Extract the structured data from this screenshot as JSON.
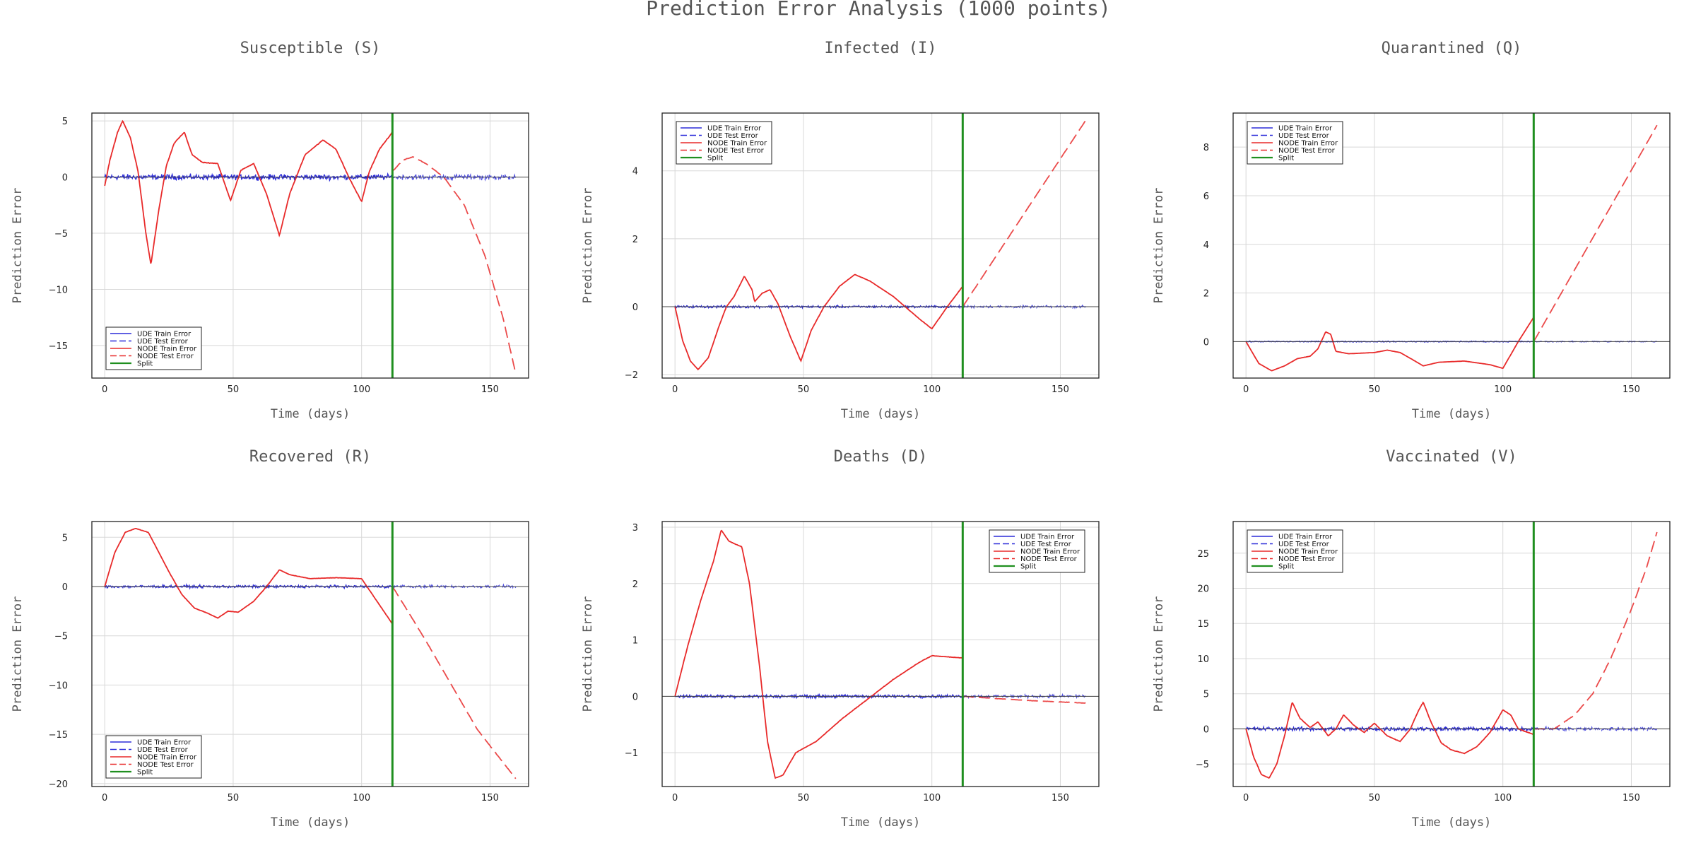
{
  "figure": {
    "title": "Prediction Error Analysis (1000 points)"
  },
  "colors": {
    "ude": "#2b2bd9",
    "node": "#e82a2a",
    "split": "#1f8f1f",
    "grid": "#d8d8d8",
    "frame": "#222222"
  },
  "legend_labels": [
    "UDE Train Error",
    "UDE Test Error",
    "NODE Train Error",
    "NODE Test Error",
    "Split"
  ],
  "chart_data": [
    {
      "type": "line",
      "title": "Susceptible (S)",
      "xlabel": "Time (days)",
      "ylabel": "Prediction Error",
      "xlim": [
        -5,
        165
      ],
      "ylim": [
        -17.9,
        5.7
      ],
      "xticks": [
        0,
        50,
        100,
        150
      ],
      "yticks": [
        5,
        0,
        -5,
        -10,
        -15
      ],
      "split_x": 112,
      "legend_position": "bottom-left",
      "ude_noise": 0.35,
      "node_train": [
        [
          0,
          -0.8
        ],
        [
          2,
          1.5
        ],
        [
          5,
          4.0
        ],
        [
          7,
          5.0
        ],
        [
          10,
          3.5
        ],
        [
          13,
          0.5
        ],
        [
          16,
          -5.0
        ],
        [
          18,
          -7.8
        ],
        [
          21,
          -3.0
        ],
        [
          24,
          1.0
        ],
        [
          27,
          3.0
        ],
        [
          31,
          4.0
        ],
        [
          34,
          2.0
        ],
        [
          38,
          1.3
        ],
        [
          44,
          1.2
        ],
        [
          49,
          -2.1
        ],
        [
          53,
          0.6
        ],
        [
          58,
          1.2
        ],
        [
          63,
          -1.5
        ],
        [
          68,
          -5.2
        ],
        [
          72,
          -1.5
        ],
        [
          78,
          2.0
        ],
        [
          85,
          3.3
        ],
        [
          90,
          2.5
        ],
        [
          95,
          0.0
        ],
        [
          100,
          -2.2
        ],
        [
          103,
          0.5
        ],
        [
          107,
          2.5
        ],
        [
          112,
          4.0
        ]
      ],
      "node_test": [
        [
          112,
          0.5
        ],
        [
          116,
          1.5
        ],
        [
          120,
          1.8
        ],
        [
          125,
          1.2
        ],
        [
          132,
          0.0
        ],
        [
          140,
          -2.5
        ],
        [
          148,
          -7.0
        ],
        [
          155,
          -12.5
        ],
        [
          160,
          -17.5
        ]
      ],
      "series": [
        {
          "name": "UDE Train Error"
        },
        {
          "name": "UDE Test Error"
        },
        {
          "name": "NODE Train Error"
        },
        {
          "name": "NODE Test Error"
        },
        {
          "name": "Split"
        }
      ]
    },
    {
      "type": "line",
      "title": "Infected (I)",
      "xlabel": "Time (days)",
      "ylabel": "Prediction Error",
      "xlim": [
        -5,
        165
      ],
      "ylim": [
        -2.1,
        5.7
      ],
      "xticks": [
        0,
        50,
        100,
        150
      ],
      "yticks": [
        4,
        2,
        0,
        -2
      ],
      "split_x": 112,
      "legend_position": "top-left",
      "ude_noise": 0.05,
      "node_train": [
        [
          0,
          0.0
        ],
        [
          3,
          -1.0
        ],
        [
          6,
          -1.6
        ],
        [
          9,
          -1.85
        ],
        [
          13,
          -1.5
        ],
        [
          17,
          -0.6
        ],
        [
          20,
          0.0
        ],
        [
          23,
          0.3
        ],
        [
          27,
          0.9
        ],
        [
          30,
          0.5
        ],
        [
          31,
          0.15
        ],
        [
          34,
          0.4
        ],
        [
          37,
          0.5
        ],
        [
          40,
          0.1
        ],
        [
          45,
          -0.9
        ],
        [
          49,
          -1.6
        ],
        [
          53,
          -0.7
        ],
        [
          58,
          0.0
        ],
        [
          64,
          0.6
        ],
        [
          70,
          0.95
        ],
        [
          76,
          0.75
        ],
        [
          85,
          0.3
        ],
        [
          95,
          -0.35
        ],
        [
          100,
          -0.65
        ],
        [
          106,
          0.0
        ],
        [
          112,
          0.6
        ]
      ],
      "node_test": [
        [
          112,
          0.0
        ],
        [
          160,
          5.5
        ]
      ],
      "series": [
        {
          "name": "UDE Train Error"
        },
        {
          "name": "UDE Test Error"
        },
        {
          "name": "NODE Train Error"
        },
        {
          "name": "NODE Test Error"
        },
        {
          "name": "Split"
        }
      ]
    },
    {
      "type": "line",
      "title": "Quarantined (Q)",
      "xlabel": "Time (days)",
      "ylabel": "Prediction Error",
      "xlim": [
        -5,
        165
      ],
      "ylim": [
        -1.5,
        9.4
      ],
      "xticks": [
        0,
        50,
        100,
        150
      ],
      "yticks": [
        8,
        6,
        4,
        2,
        0
      ],
      "split_x": 112,
      "legend_position": "top-left",
      "ude_noise": 0.03,
      "node_train": [
        [
          0,
          0.0
        ],
        [
          5,
          -0.9
        ],
        [
          10,
          -1.2
        ],
        [
          15,
          -1.0
        ],
        [
          20,
          -0.7
        ],
        [
          25,
          -0.6
        ],
        [
          28,
          -0.3
        ],
        [
          31,
          0.4
        ],
        [
          33,
          0.3
        ],
        [
          35,
          -0.4
        ],
        [
          40,
          -0.5
        ],
        [
          50,
          -0.45
        ],
        [
          55,
          -0.35
        ],
        [
          60,
          -0.45
        ],
        [
          65,
          -0.75
        ],
        [
          69,
          -1.0
        ],
        [
          75,
          -0.85
        ],
        [
          85,
          -0.8
        ],
        [
          95,
          -0.95
        ],
        [
          100,
          -1.1
        ],
        [
          106,
          0.0
        ],
        [
          112,
          1.0
        ]
      ],
      "node_test": [
        [
          112,
          0.0
        ],
        [
          160,
          8.9
        ]
      ],
      "series": [
        {
          "name": "UDE Train Error"
        },
        {
          "name": "UDE Test Error"
        },
        {
          "name": "NODE Train Error"
        },
        {
          "name": "NODE Test Error"
        },
        {
          "name": "Split"
        }
      ]
    },
    {
      "type": "line",
      "title": "Recovered (R)",
      "xlabel": "Time (days)",
      "ylabel": "Prediction Error",
      "xlim": [
        -5,
        165
      ],
      "ylim": [
        -20.3,
        6.6
      ],
      "xticks": [
        0,
        50,
        100,
        150
      ],
      "yticks": [
        5,
        0,
        -5,
        -10,
        -15,
        -20
      ],
      "split_x": 112,
      "legend_position": "bottom-left",
      "ude_noise": 0.2,
      "node_train": [
        [
          0,
          0.0
        ],
        [
          4,
          3.5
        ],
        [
          8,
          5.5
        ],
        [
          12,
          5.9
        ],
        [
          17,
          5.5
        ],
        [
          20,
          4.0
        ],
        [
          25,
          1.5
        ],
        [
          30,
          -0.8
        ],
        [
          35,
          -2.2
        ],
        [
          40,
          -2.7
        ],
        [
          44,
          -3.2
        ],
        [
          48,
          -2.5
        ],
        [
          52,
          -2.6
        ],
        [
          58,
          -1.5
        ],
        [
          63,
          0.0
        ],
        [
          68,
          1.7
        ],
        [
          72,
          1.2
        ],
        [
          80,
          0.8
        ],
        [
          90,
          0.9
        ],
        [
          100,
          0.8
        ],
        [
          106,
          -1.5
        ],
        [
          112,
          -3.8
        ]
      ],
      "node_test": [
        [
          112,
          0.0
        ],
        [
          118,
          -2.5
        ],
        [
          125,
          -5.5
        ],
        [
          135,
          -10.0
        ],
        [
          145,
          -14.5
        ],
        [
          160,
          -19.5
        ]
      ],
      "series": [
        {
          "name": "UDE Train Error"
        },
        {
          "name": "UDE Test Error"
        },
        {
          "name": "NODE Train Error"
        },
        {
          "name": "NODE Test Error"
        },
        {
          "name": "Split"
        }
      ]
    },
    {
      "type": "line",
      "title": "Deaths (D)",
      "xlabel": "Time (days)",
      "ylabel": "Prediction Error",
      "xlim": [
        -5,
        165
      ],
      "ylim": [
        -1.6,
        3.1
      ],
      "xticks": [
        0,
        50,
        100,
        150
      ],
      "yticks": [
        3,
        2,
        1,
        0,
        -1
      ],
      "split_x": 112,
      "legend_position": "top-right",
      "ude_noise": 0.04,
      "node_train": [
        [
          0,
          0.0
        ],
        [
          5,
          0.9
        ],
        [
          10,
          1.7
        ],
        [
          15,
          2.4
        ],
        [
          18,
          2.95
        ],
        [
          21,
          2.75
        ],
        [
          26,
          2.65
        ],
        [
          29,
          2.0
        ],
        [
          33,
          0.5
        ],
        [
          36,
          -0.8
        ],
        [
          39,
          -1.45
        ],
        [
          42,
          -1.4
        ],
        [
          47,
          -1.0
        ],
        [
          55,
          -0.8
        ],
        [
          65,
          -0.4
        ],
        [
          75,
          -0.05
        ],
        [
          85,
          0.3
        ],
        [
          95,
          0.6
        ],
        [
          100,
          0.72
        ],
        [
          106,
          0.7
        ],
        [
          112,
          0.68
        ]
      ],
      "node_test": [
        [
          112,
          0.0
        ],
        [
          125,
          -0.04
        ],
        [
          140,
          -0.08
        ],
        [
          160,
          -0.12
        ]
      ],
      "series": [
        {
          "name": "UDE Train Error"
        },
        {
          "name": "UDE Test Error"
        },
        {
          "name": "NODE Train Error"
        },
        {
          "name": "NODE Test Error"
        },
        {
          "name": "Split"
        }
      ]
    },
    {
      "type": "line",
      "title": "Vaccinated (V)",
      "xlabel": "Time (days)",
      "ylabel": "Prediction Error",
      "xlim": [
        -5,
        165
      ],
      "ylim": [
        -8.2,
        29.5
      ],
      "xticks": [
        0,
        50,
        100,
        150
      ],
      "yticks": [
        25,
        20,
        15,
        10,
        5,
        0,
        -5
      ],
      "split_x": 112,
      "legend_position": "top-left",
      "ude_noise": 0.4,
      "node_train": [
        [
          0,
          0.0
        ],
        [
          3,
          -4.0
        ],
        [
          6,
          -6.5
        ],
        [
          9,
          -7.0
        ],
        [
          12,
          -5.0
        ],
        [
          15,
          -1.0
        ],
        [
          18,
          3.8
        ],
        [
          21,
          1.5
        ],
        [
          25,
          0.2
        ],
        [
          28,
          1.0
        ],
        [
          32,
          -1.0
        ],
        [
          35,
          0.0
        ],
        [
          38,
          2.0
        ],
        [
          42,
          0.5
        ],
        [
          46,
          -0.5
        ],
        [
          50,
          0.8
        ],
        [
          55,
          -1.0
        ],
        [
          60,
          -1.8
        ],
        [
          64,
          0.0
        ],
        [
          67,
          2.5
        ],
        [
          69,
          3.8
        ],
        [
          72,
          1.0
        ],
        [
          76,
          -2.0
        ],
        [
          80,
          -3.0
        ],
        [
          85,
          -3.5
        ],
        [
          90,
          -2.5
        ],
        [
          95,
          -0.5
        ],
        [
          100,
          2.7
        ],
        [
          103,
          2.0
        ],
        [
          106,
          0.0
        ],
        [
          112,
          -0.8
        ]
      ],
      "node_test": [
        [
          112,
          0.0
        ],
        [
          120,
          0.0
        ],
        [
          128,
          2.0
        ],
        [
          135,
          5.0
        ],
        [
          142,
          10.0
        ],
        [
          150,
          17.0
        ],
        [
          156,
          23.0
        ],
        [
          160,
          28.0
        ]
      ],
      "series": [
        {
          "name": "UDE Train Error"
        },
        {
          "name": "UDE Test Error"
        },
        {
          "name": "NODE Train Error"
        },
        {
          "name": "NODE Test Error"
        },
        {
          "name": "Split"
        }
      ]
    }
  ]
}
